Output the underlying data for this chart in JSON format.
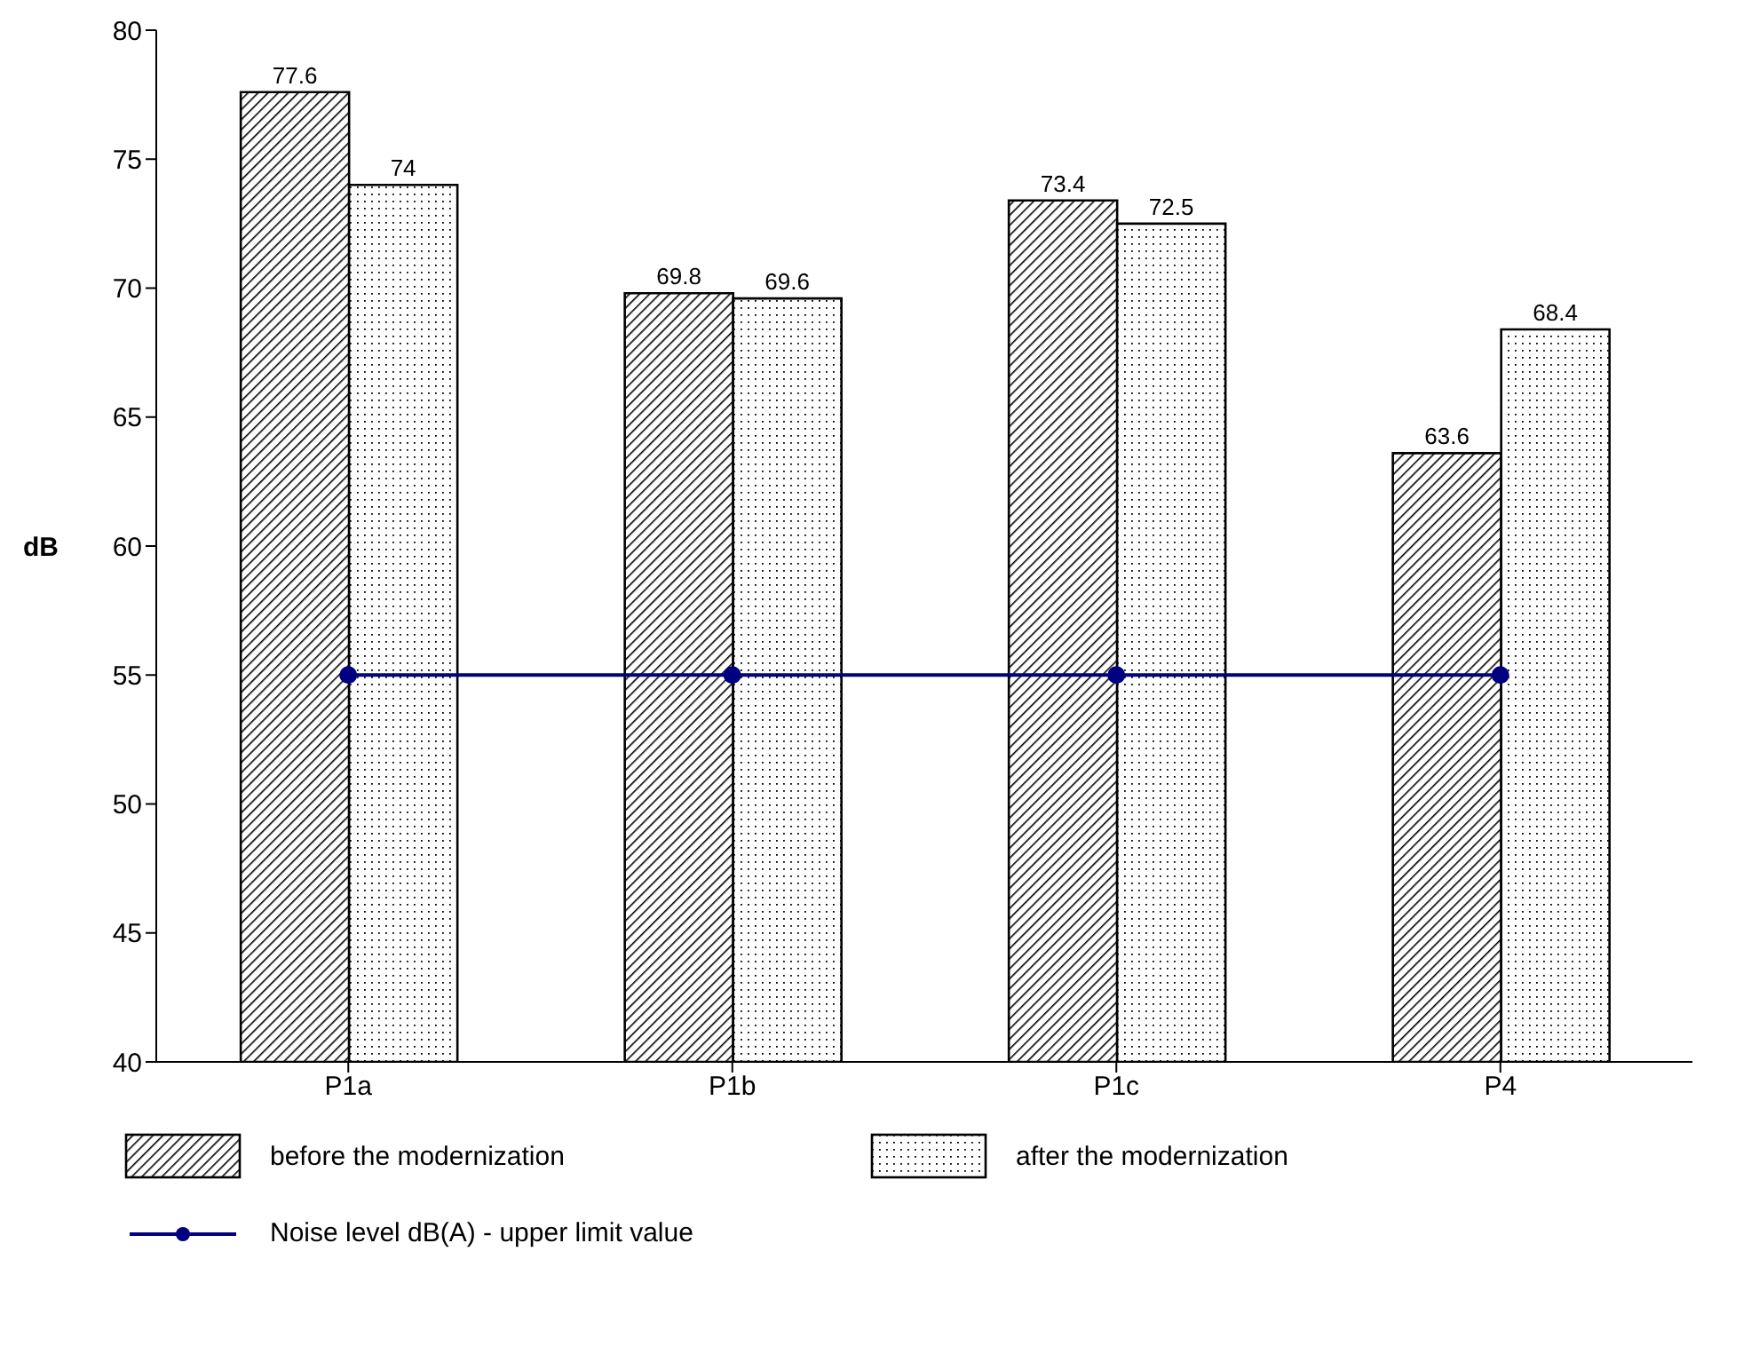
{
  "chart_data": {
    "type": "bar",
    "ylabel": "dB",
    "categories": [
      "P1a",
      "P1b",
      "P1c",
      "P4"
    ],
    "series": [
      {
        "name": "before the modernization",
        "color": "#000000",
        "values": [
          77.6,
          69.8,
          73.4,
          63.6
        ],
        "value_labels": [
          "77.6",
          "69.8",
          "73.4",
          "63.6"
        ]
      },
      {
        "name": "after the modernization",
        "color": "#000000",
        "values": [
          74,
          69.6,
          72.5,
          68.4
        ],
        "value_labels": [
          "74",
          "69.6",
          "72.5",
          "68.4"
        ]
      },
      {
        "name": "Noise level dB(A) - upper limit value",
        "type": "line",
        "color": "#000080",
        "marker": "circle",
        "values": [
          55,
          55,
          55,
          55
        ]
      }
    ],
    "ylim": [
      40,
      80
    ],
    "yticks": [
      40,
      45,
      50,
      55,
      60,
      65,
      70,
      75,
      80
    ],
    "legend": "bottom"
  }
}
